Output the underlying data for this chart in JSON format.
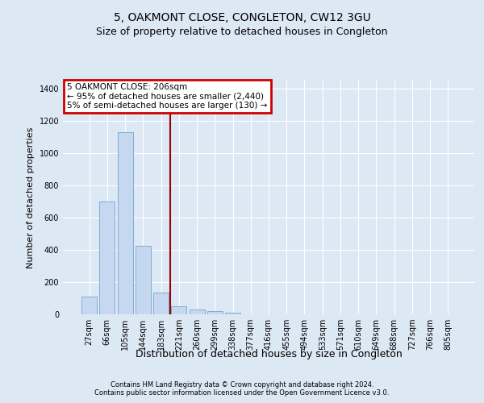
{
  "title": "5, OAKMONT CLOSE, CONGLETON, CW12 3GU",
  "subtitle": "Size of property relative to detached houses in Congleton",
  "xlabel": "Distribution of detached houses by size in Congleton",
  "ylabel": "Number of detached properties",
  "footer1": "Contains HM Land Registry data © Crown copyright and database right 2024.",
  "footer2": "Contains public sector information licensed under the Open Government Licence v3.0.",
  "categories": [
    "27sqm",
    "66sqm",
    "105sqm",
    "144sqm",
    "183sqm",
    "221sqm",
    "260sqm",
    "299sqm",
    "338sqm",
    "377sqm",
    "416sqm",
    "455sqm",
    "494sqm",
    "533sqm",
    "571sqm",
    "610sqm",
    "649sqm",
    "688sqm",
    "727sqm",
    "766sqm",
    "805sqm"
  ],
  "values": [
    110,
    700,
    1130,
    425,
    135,
    50,
    32,
    20,
    10,
    0,
    0,
    0,
    0,
    0,
    0,
    0,
    0,
    0,
    0,
    0,
    0
  ],
  "bar_color": "#c5d8f0",
  "bar_edge_color": "#7daed4",
  "vline_x": 5.0,
  "vline_color": "#990000",
  "annotation_text": "5 OAKMONT CLOSE: 206sqm\n← 95% of detached houses are smaller (2,440)\n5% of semi-detached houses are larger (130) →",
  "annotation_box_facecolor": "#ffffff",
  "annotation_box_edgecolor": "#cc0000",
  "ylim": [
    0,
    1450
  ],
  "yticks": [
    0,
    200,
    400,
    600,
    800,
    1000,
    1200,
    1400
  ],
  "bg_color": "#dde8f5",
  "plot_bg_color": "#dde8f5",
  "grid_color": "#ffffff",
  "title_fontsize": 10,
  "subtitle_fontsize": 9,
  "tick_fontsize": 7,
  "ylabel_fontsize": 8,
  "xlabel_fontsize": 9,
  "footer_fontsize": 6
}
